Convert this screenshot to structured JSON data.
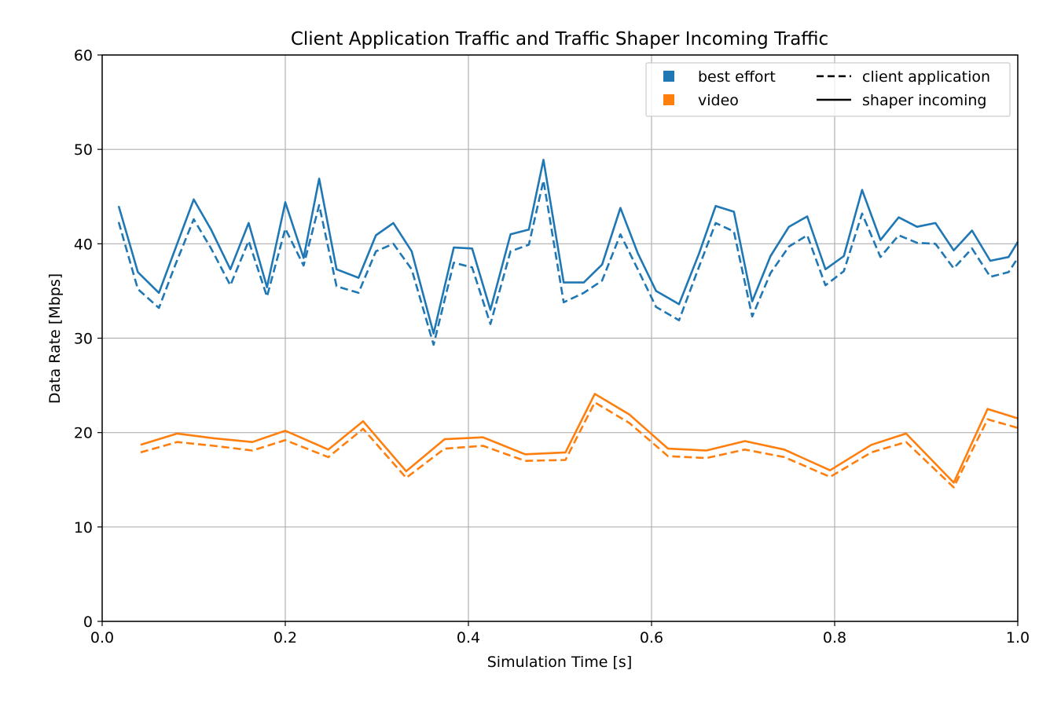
{
  "chart_data": {
    "type": "line",
    "title": "Client Application Traffic and Traffic Shaper Incoming Traffic",
    "xlabel": "Simulation Time [s]",
    "ylabel": "Data Rate [Mbps]",
    "xlim": [
      0.0,
      1.0
    ],
    "ylim": [
      0,
      60
    ],
    "x_ticks": [
      "0.0",
      "0.2",
      "0.4",
      "0.6",
      "0.8",
      "1.0"
    ],
    "y_ticks": [
      "0",
      "10",
      "20",
      "30",
      "40",
      "50",
      "60"
    ],
    "grid": true,
    "legend_placement": "top-right",
    "legend": {
      "categories": [
        {
          "label": "best effort",
          "color": "#1f77b4"
        },
        {
          "label": "video",
          "color": "#ff7f0e"
        }
      ],
      "styles": [
        {
          "label": "client application",
          "dash": "dashed"
        },
        {
          "label": "shaper incoming",
          "dash": "solid"
        }
      ]
    },
    "series": [
      {
        "category": "best effort",
        "style": "shaper incoming",
        "color": "#1f77b4",
        "dash": "solid",
        "points": [
          [
            0.018,
            44.0
          ],
          [
            0.039,
            37.0
          ],
          [
            0.062,
            34.8
          ],
          [
            0.08,
            39.5
          ],
          [
            0.1,
            44.7
          ],
          [
            0.119,
            41.5
          ],
          [
            0.14,
            37.3
          ],
          [
            0.16,
            42.2
          ],
          [
            0.18,
            35.4
          ],
          [
            0.2,
            44.4
          ],
          [
            0.22,
            38.5
          ],
          [
            0.237,
            46.9
          ],
          [
            0.256,
            37.3
          ],
          [
            0.28,
            36.4
          ],
          [
            0.299,
            40.9
          ],
          [
            0.318,
            42.2
          ],
          [
            0.338,
            39.2
          ],
          [
            0.362,
            30.5
          ],
          [
            0.384,
            39.6
          ],
          [
            0.404,
            39.5
          ],
          [
            0.424,
            33.0
          ],
          [
            0.446,
            41.0
          ],
          [
            0.466,
            41.5
          ],
          [
            0.482,
            48.9
          ],
          [
            0.504,
            35.9
          ],
          [
            0.526,
            35.9
          ],
          [
            0.546,
            37.8
          ],
          [
            0.566,
            43.8
          ],
          [
            0.585,
            39.0
          ],
          [
            0.605,
            35.0
          ],
          [
            0.63,
            33.6
          ],
          [
            0.652,
            39.0
          ],
          [
            0.67,
            44.0
          ],
          [
            0.69,
            43.4
          ],
          [
            0.71,
            33.9
          ],
          [
            0.73,
            38.7
          ],
          [
            0.75,
            41.8
          ],
          [
            0.77,
            42.9
          ],
          [
            0.79,
            37.3
          ],
          [
            0.81,
            38.7
          ],
          [
            0.83,
            45.7
          ],
          [
            0.85,
            40.4
          ],
          [
            0.87,
            42.8
          ],
          [
            0.89,
            41.8
          ],
          [
            0.91,
            42.2
          ],
          [
            0.93,
            39.3
          ],
          [
            0.95,
            41.4
          ],
          [
            0.97,
            38.2
          ],
          [
            0.99,
            38.6
          ],
          [
            1.0,
            40.2
          ]
        ]
      },
      {
        "category": "best effort",
        "style": "client application",
        "color": "#1f77b4",
        "dash": "dashed",
        "points": [
          [
            0.018,
            42.3
          ],
          [
            0.039,
            35.2
          ],
          [
            0.062,
            33.2
          ],
          [
            0.08,
            37.8
          ],
          [
            0.1,
            42.6
          ],
          [
            0.119,
            39.5
          ],
          [
            0.14,
            35.6
          ],
          [
            0.16,
            40.3
          ],
          [
            0.18,
            34.4
          ],
          [
            0.2,
            41.6
          ],
          [
            0.22,
            37.7
          ],
          [
            0.237,
            44.1
          ],
          [
            0.256,
            35.5
          ],
          [
            0.28,
            34.8
          ],
          [
            0.299,
            39.2
          ],
          [
            0.318,
            40.0
          ],
          [
            0.338,
            37.3
          ],
          [
            0.362,
            29.3
          ],
          [
            0.384,
            38.0
          ],
          [
            0.404,
            37.5
          ],
          [
            0.424,
            31.5
          ],
          [
            0.446,
            39.2
          ],
          [
            0.466,
            39.9
          ],
          [
            0.482,
            46.7
          ],
          [
            0.504,
            33.8
          ],
          [
            0.526,
            34.8
          ],
          [
            0.546,
            36.1
          ],
          [
            0.566,
            41.0
          ],
          [
            0.585,
            37.3
          ],
          [
            0.605,
            33.3
          ],
          [
            0.63,
            31.9
          ],
          [
            0.652,
            37.6
          ],
          [
            0.67,
            42.2
          ],
          [
            0.69,
            41.3
          ],
          [
            0.71,
            32.3
          ],
          [
            0.73,
            36.9
          ],
          [
            0.75,
            39.7
          ],
          [
            0.77,
            40.9
          ],
          [
            0.79,
            35.6
          ],
          [
            0.81,
            37.1
          ],
          [
            0.83,
            43.2
          ],
          [
            0.85,
            38.6
          ],
          [
            0.87,
            40.9
          ],
          [
            0.89,
            40.1
          ],
          [
            0.91,
            40.0
          ],
          [
            0.93,
            37.4
          ],
          [
            0.95,
            39.5
          ],
          [
            0.97,
            36.5
          ],
          [
            0.99,
            37.0
          ],
          [
            1.0,
            38.5
          ]
        ]
      },
      {
        "category": "video",
        "style": "shaper incoming",
        "color": "#ff7f0e",
        "dash": "solid",
        "points": [
          [
            0.042,
            18.7
          ],
          [
            0.082,
            19.9
          ],
          [
            0.122,
            19.4
          ],
          [
            0.164,
            19.0
          ],
          [
            0.2,
            20.2
          ],
          [
            0.247,
            18.2
          ],
          [
            0.285,
            21.2
          ],
          [
            0.332,
            15.9
          ],
          [
            0.374,
            19.3
          ],
          [
            0.416,
            19.5
          ],
          [
            0.462,
            17.7
          ],
          [
            0.506,
            17.9
          ],
          [
            0.538,
            24.1
          ],
          [
            0.576,
            21.9
          ],
          [
            0.618,
            18.3
          ],
          [
            0.66,
            18.1
          ],
          [
            0.702,
            19.1
          ],
          [
            0.745,
            18.2
          ],
          [
            0.795,
            16.0
          ],
          [
            0.84,
            18.7
          ],
          [
            0.878,
            19.9
          ],
          [
            0.93,
            14.7
          ],
          [
            0.967,
            22.5
          ],
          [
            1.0,
            21.5
          ]
        ]
      },
      {
        "category": "video",
        "style": "client application",
        "color": "#ff7f0e",
        "dash": "dashed",
        "points": [
          [
            0.042,
            17.9
          ],
          [
            0.082,
            19.0
          ],
          [
            0.122,
            18.6
          ],
          [
            0.164,
            18.1
          ],
          [
            0.2,
            19.2
          ],
          [
            0.247,
            17.4
          ],
          [
            0.285,
            20.4
          ],
          [
            0.332,
            15.2
          ],
          [
            0.374,
            18.3
          ],
          [
            0.416,
            18.6
          ],
          [
            0.462,
            17.0
          ],
          [
            0.506,
            17.1
          ],
          [
            0.538,
            23.2
          ],
          [
            0.576,
            21.0
          ],
          [
            0.618,
            17.5
          ],
          [
            0.66,
            17.3
          ],
          [
            0.702,
            18.2
          ],
          [
            0.745,
            17.4
          ],
          [
            0.795,
            15.3
          ],
          [
            0.84,
            17.9
          ],
          [
            0.878,
            19.0
          ],
          [
            0.93,
            14.2
          ],
          [
            0.967,
            21.4
          ],
          [
            1.0,
            20.5
          ]
        ]
      }
    ]
  }
}
